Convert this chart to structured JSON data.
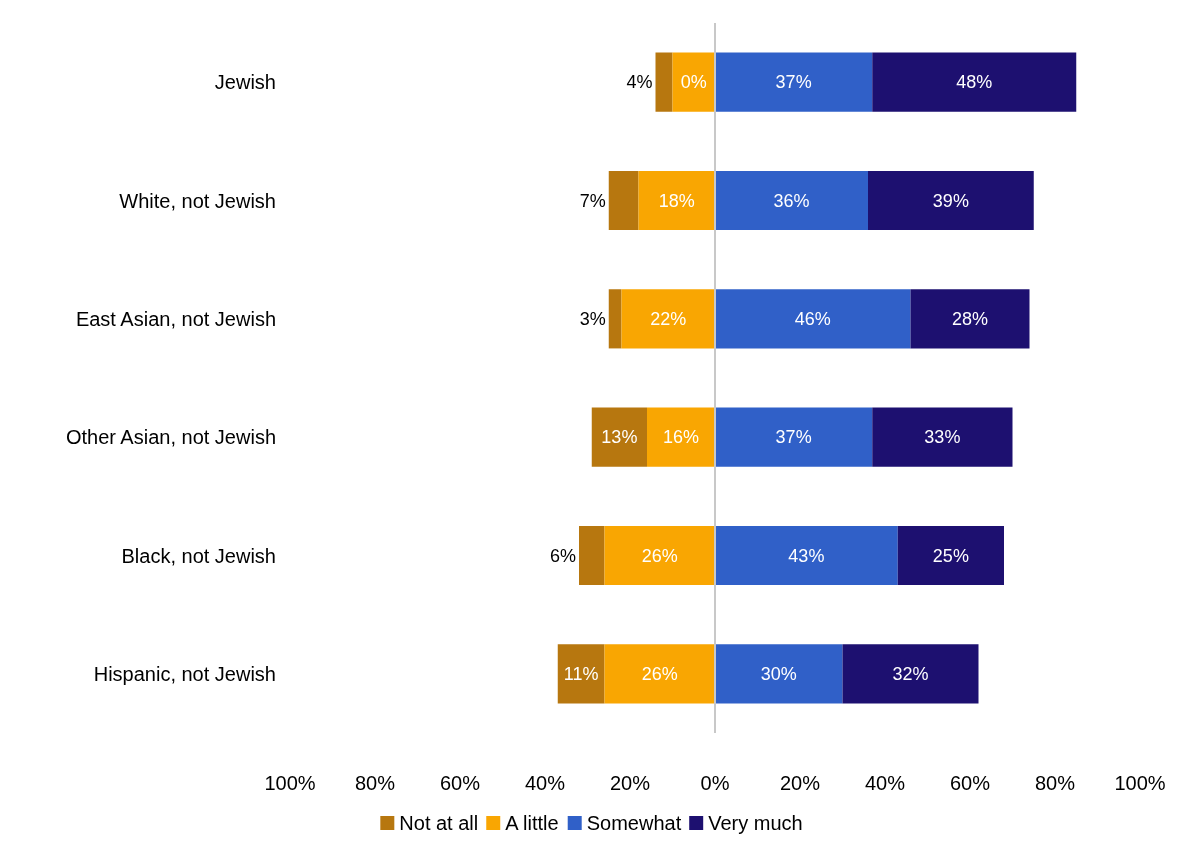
{
  "chart_data": {
    "type": "bar",
    "orientation": "horizontal",
    "legend": "bottom",
    "grid": false,
    "categories": [
      "Jewish",
      "White, not Jewish",
      "East Asian, not Jewish",
      "Other Asian, not Jewish",
      "Black, not Jewish",
      "Hispanic, not Jewish"
    ],
    "xlim": [
      -100,
      100
    ],
    "ref_lines": [
      {
        "axis": "x",
        "value": 0,
        "color": "#c8c8c8"
      }
    ],
    "xticks": [
      {
        "value": -100,
        "label": "100%"
      },
      {
        "value": -80,
        "label": "80%"
      },
      {
        "value": -60,
        "label": "60%"
      },
      {
        "value": -40,
        "label": "40%"
      },
      {
        "value": -20,
        "label": "20%"
      },
      {
        "value": 0,
        "label": "0%"
      },
      {
        "value": 20,
        "label": "20%"
      },
      {
        "value": 40,
        "label": "40%"
      },
      {
        "value": 60,
        "label": "60%"
      },
      {
        "value": 80,
        "label": "80%"
      },
      {
        "value": 100,
        "label": "100%"
      }
    ],
    "series": [
      {
        "name": "Not at all",
        "color": "#b7770f",
        "values": [
          4,
          7,
          3,
          13,
          6,
          11
        ],
        "base": [
          -14,
          -25,
          -25,
          -29,
          -32,
          -37
        ],
        "value_labels": [
          "4%",
          "7%",
          "3%",
          "13%",
          "6%",
          "11%"
        ]
      },
      {
        "name": "A little",
        "color": "#f9a602",
        "values": [
          10,
          18,
          22,
          16,
          26,
          26
        ],
        "base": [
          -10,
          -18,
          -22,
          -16,
          -26,
          -26
        ],
        "value_labels": [
          "0%",
          "18%",
          "22%",
          "16%",
          "26%",
          "26%"
        ]
      },
      {
        "name": "Somewhat",
        "color": "#3060c8",
        "values": [
          37,
          36,
          46,
          37,
          43,
          30
        ],
        "base": [
          0,
          0,
          0,
          0,
          0,
          0
        ],
        "value_labels": [
          "37%",
          "36%",
          "46%",
          "37%",
          "43%",
          "30%"
        ]
      },
      {
        "name": "Very much",
        "color": "#1d1070",
        "values": [
          48,
          39,
          28,
          33,
          25,
          32
        ],
        "base": [
          37,
          36,
          46,
          37,
          43,
          30
        ],
        "value_labels": [
          "48%",
          "39%",
          "28%",
          "33%",
          "25%",
          "32%"
        ]
      }
    ]
  }
}
